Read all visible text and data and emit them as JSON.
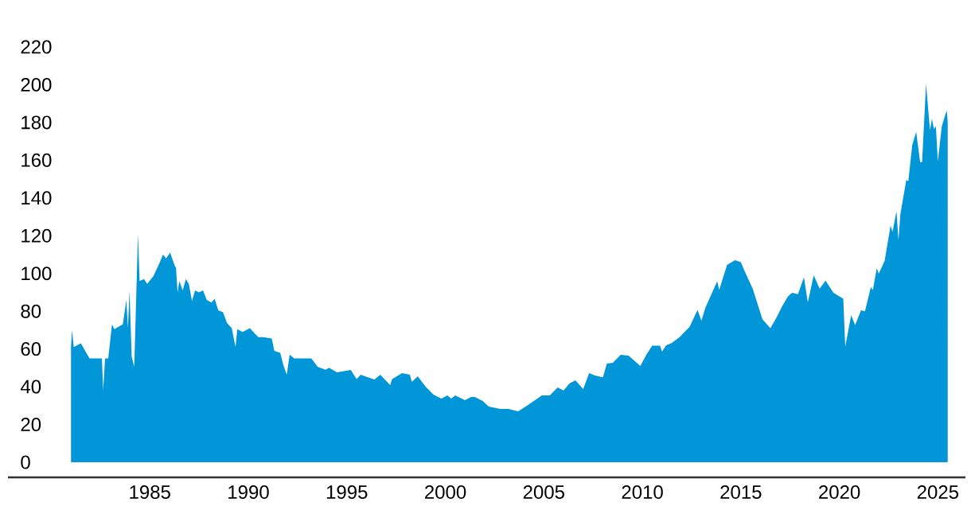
{
  "chart_data": {
    "type": "area",
    "color": "#0096d7",
    "x": [
      1981.0,
      1981.05,
      1981.14,
      1981.5,
      1981.94,
      1982.57,
      1982.63,
      1982.73,
      1982.89,
      1983.08,
      1983.2,
      1983.44,
      1983.63,
      1983.81,
      1983.89,
      1983.97,
      1984.08,
      1984.21,
      1984.4,
      1984.48,
      1984.7,
      1984.87,
      1985.19,
      1985.51,
      1985.67,
      1985.83,
      1986.03,
      1986.27,
      1986.33,
      1986.41,
      1986.5,
      1986.67,
      1986.83,
      1986.98,
      1987.14,
      1987.3,
      1987.49,
      1987.7,
      1987.89,
      1988.13,
      1988.29,
      1988.48,
      1988.71,
      1988.92,
      1989.16,
      1989.35,
      1989.44,
      1989.71,
      1990.08,
      1990.35,
      1990.51,
      1990.75,
      1991.19,
      1991.32,
      1991.62,
      1991.78,
      1991.95,
      1992.1,
      1992.33,
      1992.65,
      1993.2,
      1993.52,
      1993.92,
      1994.1,
      1994.5,
      1995.2,
      1995.5,
      1995.7,
      1996.4,
      1996.7,
      1997.2,
      1997.3,
      1997.8,
      1998.2,
      1998.3,
      1998.6,
      1999.0,
      1999.4,
      1999.8,
      2000.1,
      2000.3,
      2000.5,
      2001.0,
      2001.3,
      2001.5,
      2001.9,
      2002.2,
      2002.8,
      2003.2,
      2003.7,
      2004.2,
      2004.9,
      2005.3,
      2005.7,
      2006.0,
      2006.3,
      2006.6,
      2007.0,
      2007.3,
      2007.6,
      2008.0,
      2008.2,
      2008.5,
      2008.9,
      2009.3,
      2009.9,
      2010.2,
      2010.5,
      2010.9,
      2011.0,
      2011.2,
      2011.5,
      2011.9,
      2012.4,
      2012.8,
      2013.0,
      2013.2,
      2013.8,
      2013.9,
      2014.3,
      2014.7,
      2015.0,
      2015.2,
      2015.6,
      2016.1,
      2016.5,
      2016.8,
      2017.1,
      2017.4,
      2017.6,
      2017.9,
      2018.2,
      2018.4,
      2018.7,
      2019.0,
      2019.3,
      2019.7,
      2020.2,
      2020.3,
      2020.6,
      2020.8,
      2021.1,
      2021.3,
      2021.6,
      2021.7,
      2021.9,
      2022.0,
      2022.3,
      2022.6,
      2022.7,
      2022.9,
      2023.0,
      2023.1,
      2023.4,
      2023.5,
      2023.7,
      2023.9,
      2024.1,
      2024.2,
      2024.4,
      2024.6,
      2024.7,
      2024.8,
      2024.9,
      2025.0,
      2025.2,
      2025.4,
      2025.45,
      2025.5
    ],
    "values": [
      61,
      70,
      61,
      63,
      55,
      55,
      38,
      55,
      55,
      73,
      70.5,
      72,
      73,
      86,
      71,
      91,
      56,
      50.6,
      121,
      96,
      97,
      94.5,
      98.7,
      106,
      110,
      108,
      111,
      104,
      103,
      90,
      96,
      91,
      97,
      94.5,
      85.4,
      91,
      90,
      91,
      86,
      84.6,
      86.6,
      80.4,
      79.5,
      73.8,
      71,
      61,
      70.5,
      69,
      71,
      68,
      66.3,
      66.3,
      65.5,
      59,
      58,
      51.4,
      46.4,
      57,
      55,
      55,
      55,
      50.6,
      49,
      50,
      47.6,
      48.9,
      44,
      46.4,
      43.8,
      46.4,
      40.9,
      44,
      47.2,
      46.4,
      42.6,
      45.5,
      40,
      35.8,
      33.7,
      35.4,
      33.7,
      35.4,
      32.9,
      34.6,
      34.6,
      32.4,
      29.5,
      28.2,
      28.2,
      27,
      30.3,
      35.4,
      35.4,
      39.6,
      38,
      41.7,
      43.4,
      38.8,
      47.2,
      45.9,
      45,
      52.3,
      52.7,
      56.9,
      56.5,
      51,
      56.9,
      61.7,
      61.7,
      58.6,
      61.9,
      63.2,
      66.4,
      71.8,
      80.7,
      75,
      81.9,
      95.9,
      91.2,
      104.5,
      107,
      106,
      101,
      92,
      75.7,
      71,
      76.5,
      82.7,
      88,
      89.8,
      89,
      98,
      84.7,
      99,
      92,
      96.2,
      89.8,
      86.6,
      61.2,
      78,
      72.6,
      80.5,
      80,
      92.8,
      91.2,
      102.8,
      99.9,
      106.7,
      125.4,
      122,
      133,
      117.6,
      131.6,
      149.6,
      148.8,
      168,
      175,
      159,
      159,
      200.4,
      175.9,
      182,
      176.5,
      178,
      159.5,
      178,
      184.8,
      186.4,
      180.5
    ],
    "xlim": [
      1977.8,
      2026.4
    ],
    "xticks": [
      1985,
      1990,
      1995,
      2000,
      2005,
      2010,
      2015,
      2020,
      2025
    ],
    "ylim": [
      -8,
      220
    ],
    "yticks": [
      0,
      20,
      40,
      60,
      80,
      100,
      120,
      140,
      160,
      180,
      200,
      220
    ]
  }
}
